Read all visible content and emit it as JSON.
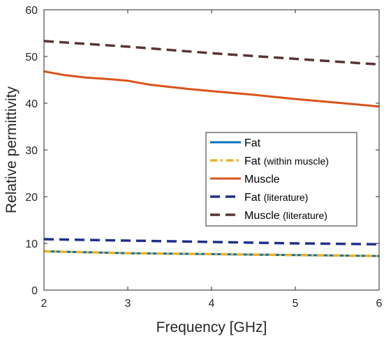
{
  "chart_data": {
    "type": "line",
    "title": "",
    "xlabel": "Frequency [GHz]",
    "ylabel": "Relative permittivity",
    "xlim": [
      2,
      6
    ],
    "ylim": [
      0,
      60
    ],
    "xticks": [
      "2",
      "3",
      "4",
      "5",
      "6"
    ],
    "yticks": [
      "0",
      "10",
      "20",
      "30",
      "40",
      "50",
      "60"
    ],
    "grid": false,
    "legend_position": "center-right",
    "series": [
      {
        "name": "Fat",
        "line_style": "solid",
        "color": "#0072BD",
        "x": [
          2,
          2.5,
          3,
          3.5,
          4,
          4.5,
          5,
          5.5,
          6
        ],
        "y": [
          8.3,
          8.1,
          7.9,
          7.8,
          7.7,
          7.6,
          7.5,
          7.4,
          7.3
        ]
      },
      {
        "name": "Fat (within muscle)",
        "line_style": "dash-dot",
        "color": "#EDB120",
        "x": [
          2,
          2.5,
          3,
          3.5,
          4,
          4.5,
          5,
          5.5,
          6
        ],
        "y": [
          8.3,
          8.1,
          7.9,
          7.8,
          7.7,
          7.6,
          7.5,
          7.4,
          7.3
        ]
      },
      {
        "name": "Muscle",
        "line_style": "solid",
        "color": "#D95319",
        "x": [
          2,
          2.25,
          2.5,
          2.75,
          3,
          3.25,
          3.5,
          3.75,
          4,
          4.5,
          5,
          5.5,
          6
        ],
        "y": [
          46.8,
          46.0,
          45.5,
          45.2,
          44.8,
          44.0,
          43.5,
          43.0,
          42.6,
          41.8,
          40.9,
          40.1,
          39.3
        ]
      },
      {
        "name": "Fat (literature)",
        "line_style": "dashed",
        "color": "#1F2F8C",
        "x": [
          2,
          3,
          4,
          5,
          6
        ],
        "y": [
          10.9,
          10.6,
          10.3,
          10.0,
          9.8
        ]
      },
      {
        "name": "Muscle (literature)",
        "line_style": "dashed",
        "color": "#5A3434",
        "x": [
          2,
          3,
          4,
          5,
          6
        ],
        "y": [
          53.3,
          52.1,
          50.7,
          49.5,
          48.3
        ]
      }
    ]
  }
}
